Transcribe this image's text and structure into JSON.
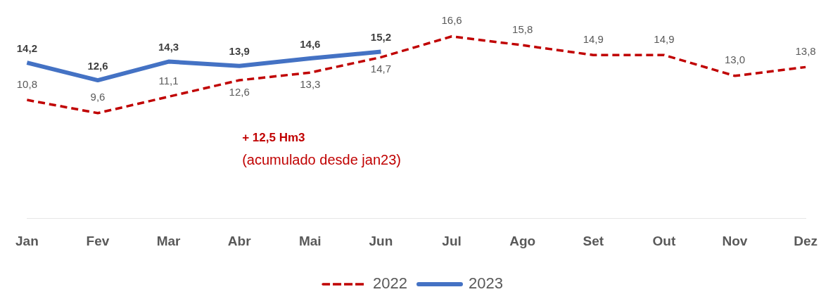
{
  "chart_data": {
    "type": "line",
    "categories": [
      "Jan",
      "Fev",
      "Mar",
      "Abr",
      "Mai",
      "Jun",
      "Jul",
      "Ago",
      "Set",
      "Out",
      "Nov",
      "Dez"
    ],
    "series": [
      {
        "name": "2022",
        "color": "#c00000",
        "line_style": "dashed",
        "values": [
          10.8,
          9.6,
          11.1,
          12.6,
          13.3,
          14.7,
          16.6,
          15.8,
          14.9,
          14.9,
          13.0,
          13.8
        ],
        "value_labels": [
          "10,8",
          "9,6",
          "11,1",
          "12,6",
          "13,3",
          "14,7",
          "16,6",
          "15,8",
          "14,9",
          "14,9",
          "13,0",
          "13,8"
        ]
      },
      {
        "name": "2023",
        "color": "#4472c4",
        "line_style": "solid",
        "values": [
          14.2,
          12.6,
          14.3,
          13.9,
          14.6,
          15.2,
          null,
          null,
          null,
          null,
          null,
          null
        ],
        "value_labels": [
          "14,2",
          "12,6",
          "14,3",
          "13,9",
          "14,6",
          "15,2",
          null,
          null,
          null,
          null,
          null,
          null
        ]
      }
    ],
    "marker": "none",
    "grid": false,
    "legend": "bottom",
    "annotations": [
      "+ 12,5 Hm3",
      "(acumulado desde jan23)"
    ]
  }
}
